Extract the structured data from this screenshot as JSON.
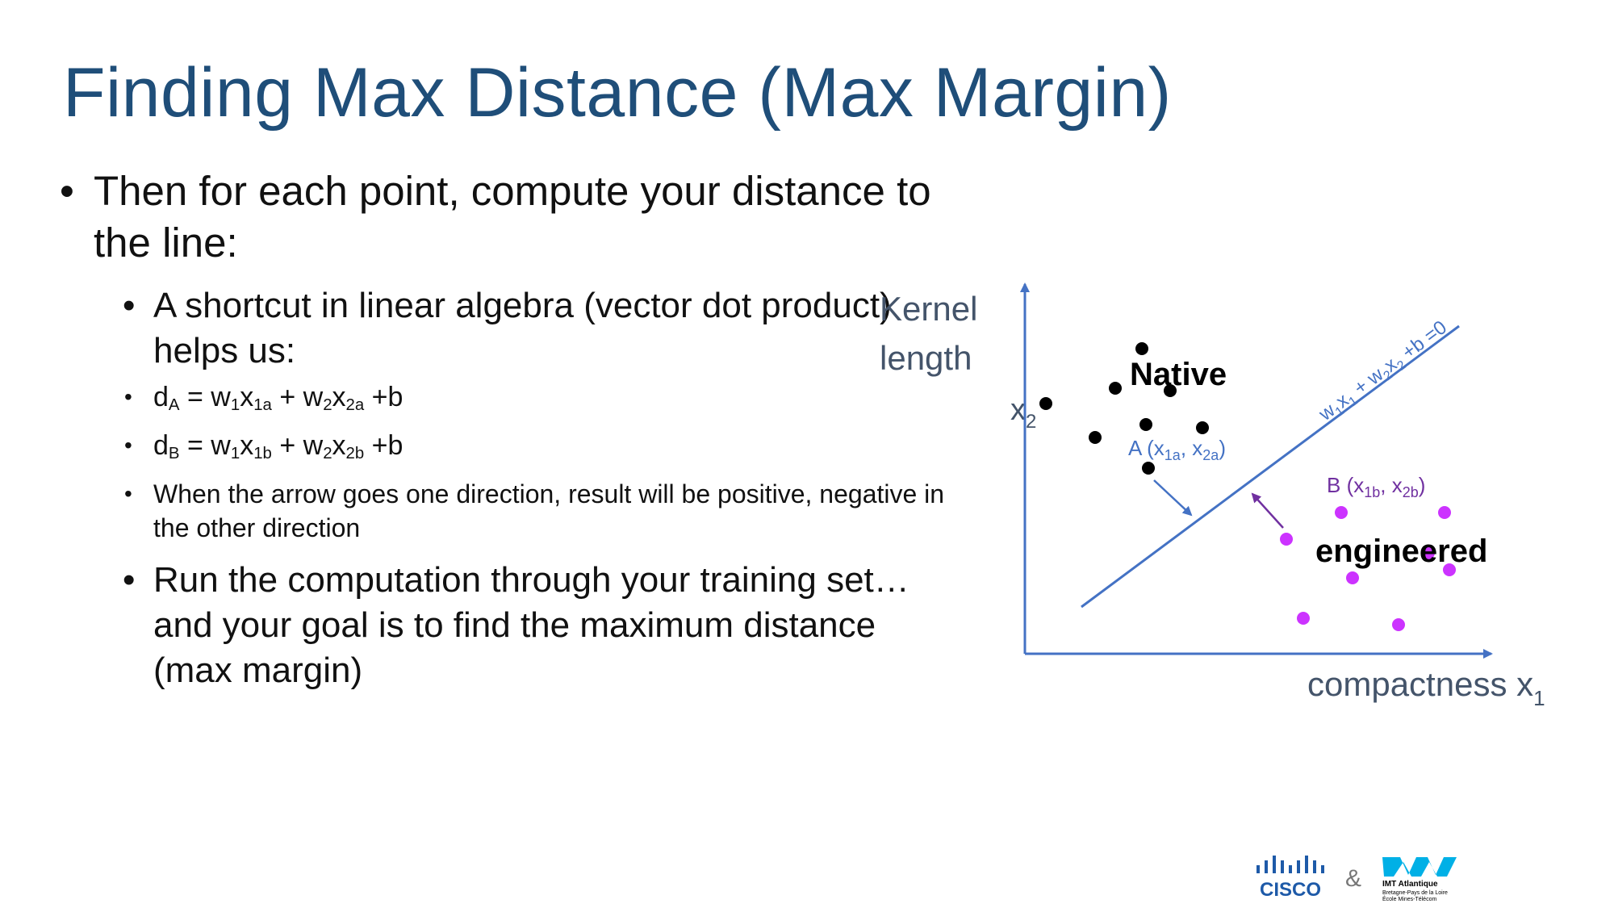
{
  "slide": {
    "title": "Finding Max Distance (Max Margin)",
    "bullet1": "Then for each point, compute your distance to the line:",
    "bullet2": "A shortcut in linear algebra (vector dot product) helps us:",
    "eq_a": {
      "d": "d",
      "d_sub": "A",
      "eq": " = w",
      "w1sub": "1",
      "x": "x",
      "x1sub": "1a",
      "plus": " + w",
      "w2sub": "2",
      "x2": "x",
      "x2sub": "2a",
      "b": " +b"
    },
    "eq_b": {
      "d": "d",
      "d_sub": "B",
      "eq": " = w",
      "w1sub": "1",
      "x": "x",
      "x1sub": "1b",
      "plus": " + w",
      "w2sub": "2",
      "x2": "x",
      "x2sub": "2b",
      "b": " +b"
    },
    "bullet_arrow": "When the arrow goes one direction, result will be positive, negative in the other direction",
    "bullet4": "Run the computation through your training set… and your goal is to find the maximum distance (max margin)"
  },
  "chart": {
    "y_label_line1": "Kernel",
    "y_label_line2": "length",
    "y_axis_var": "x",
    "y_axis_var_sub": "2",
    "x_label": "compactness x",
    "x_label_sub": "1",
    "line_label": "w1x1 + w2x2 +b =0",
    "class_native": "Native",
    "class_engineered": "engineered",
    "point_a_label": "A (x1a, x2a)",
    "point_b_label": "B (x1b, x2b)",
    "colors": {
      "axis": "#4472c4",
      "native": "#000000",
      "engineered": "#cc33ff",
      "arrow_b": "#7030a0"
    }
  },
  "logos": {
    "cisco": "CISCO",
    "amp": "&",
    "imt_title": "IMT Atlantique",
    "imt_sub1": "Bretagne-Pays de la Loire",
    "imt_sub2": "École Mines-Télécom"
  }
}
